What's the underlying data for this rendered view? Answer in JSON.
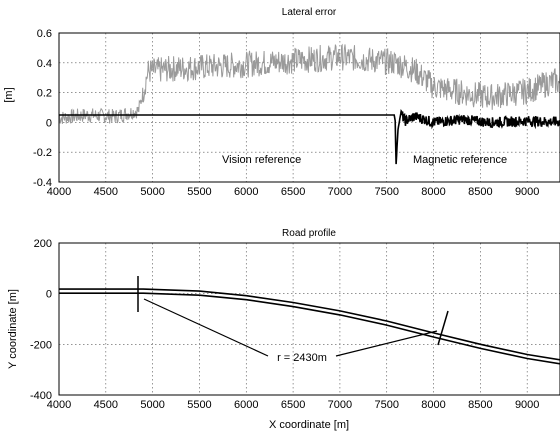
{
  "chart_data": [
    {
      "type": "line",
      "title": "Lateral error",
      "xlabel": "",
      "ylabel": "[m]",
      "xlim": [
        4000,
        9500
      ],
      "ylim": [
        -0.4,
        0.6
      ],
      "x_ticks": [
        4000,
        4500,
        5000,
        5500,
        6000,
        6500,
        7000,
        7500,
        8000,
        8500,
        9000
      ],
      "y_ticks": [
        -0.4,
        -0.2,
        0,
        0.2,
        0.4,
        0.6
      ],
      "grid": true,
      "series": [
        {
          "color": "#9a9a9a",
          "style": "noisy",
          "x": [
            4000,
            4300,
            4600,
            4850,
            4950,
            5200,
            5500,
            5800,
            6200,
            6600,
            7000,
            7300,
            7600,
            7800,
            8000,
            8300,
            8600,
            9000,
            9300,
            9500
          ],
          "values": [
            0.03,
            0.05,
            0.04,
            0.08,
            0.34,
            0.36,
            0.37,
            0.38,
            0.4,
            0.42,
            0.44,
            0.42,
            0.4,
            0.35,
            0.24,
            0.2,
            0.17,
            0.21,
            0.28,
            0.18
          ]
        },
        {
          "color": "#000000",
          "style": "solid",
          "x": [
            4000,
            7580,
            7590,
            7600,
            7620,
            7650,
            7700,
            7800,
            8000,
            8300,
            8600,
            9000,
            9500
          ],
          "values": [
            0.05,
            0.05,
            0.01,
            -0.28,
            -0.05,
            0.06,
            0.01,
            0.04,
            0.0,
            0.02,
            0.0,
            0.01,
            0.0
          ]
        }
      ],
      "annotations": [
        "Vision reference",
        "Magnetic reference"
      ]
    },
    {
      "type": "line",
      "title": "Road profile",
      "xlabel": "X coordinate [m]",
      "ylabel": "Y coordinate [m]",
      "xlim": [
        4000,
        9500
      ],
      "ylim": [
        -400,
        200
      ],
      "x_ticks": [
        4000,
        4500,
        5000,
        5500,
        6000,
        6500,
        7000,
        7500,
        8000,
        8500,
        9000
      ],
      "y_ticks": [
        -400,
        -200,
        0,
        200
      ],
      "grid": true,
      "series": [
        {
          "color": "#000000",
          "x": [
            4000,
            4500,
            4900,
            5500,
            6000,
            6500,
            7000,
            7500,
            8000,
            8500,
            9000,
            9500
          ],
          "values": [
            18,
            18,
            18,
            10,
            -8,
            -35,
            -68,
            -108,
            -155,
            -200,
            -240,
            -270
          ]
        },
        {
          "color": "#000000",
          "x": [
            4000,
            4500,
            4900,
            5500,
            6000,
            6500,
            7000,
            7500,
            8000,
            8500,
            9000,
            9500
          ],
          "values": [
            2,
            2,
            2,
            -6,
            -24,
            -51,
            -84,
            -124,
            -171,
            -216,
            -256,
            -286
          ]
        }
      ],
      "annotations": [
        "r = 2430m"
      ]
    }
  ]
}
